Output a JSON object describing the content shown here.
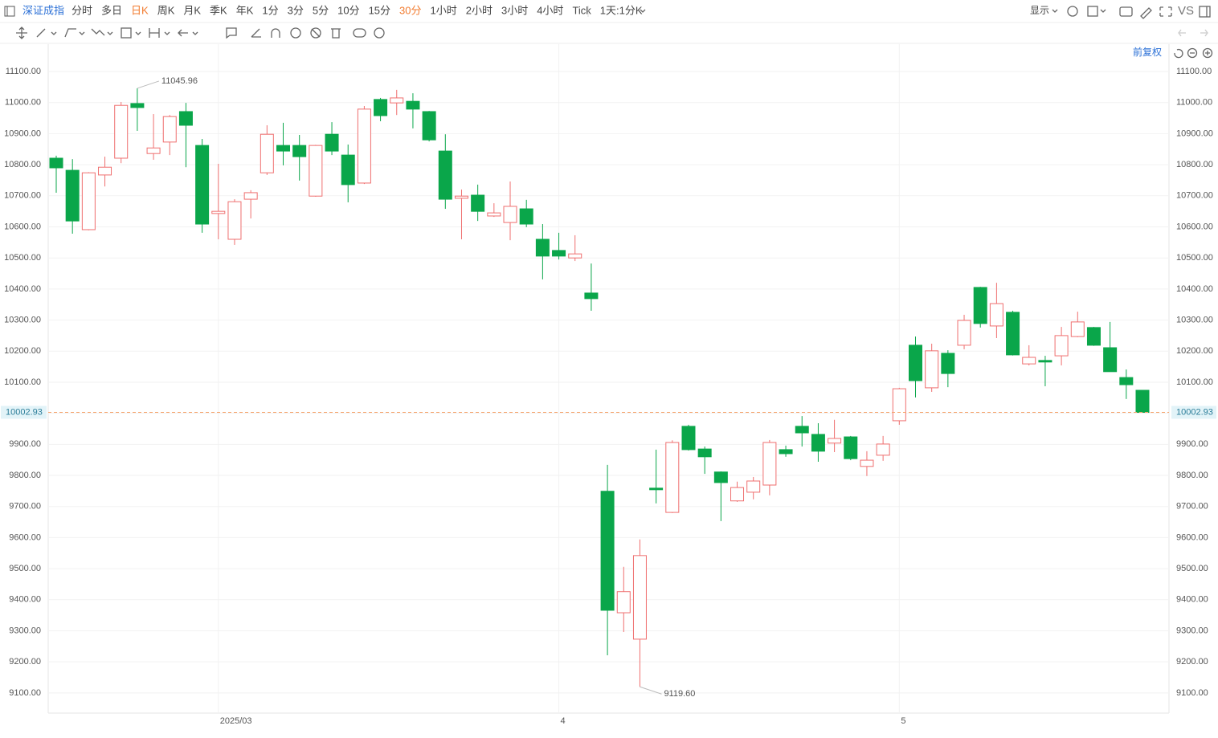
{
  "toolbar": {
    "symbol": "深证成指",
    "periods": [
      "分时",
      "多日",
      "日K",
      "周K",
      "月K",
      "季K",
      "年K",
      "1分",
      "3分",
      "5分",
      "10分",
      "15分",
      "30分",
      "1小时",
      "2小时",
      "3小时",
      "4小时",
      "Tick",
      "1天:1分K"
    ],
    "highlight": {
      "indices": [
        2,
        12
      ],
      "color": "#f27b2f"
    },
    "display": "显示",
    "vs": "VS",
    "adjust": "前复权"
  },
  "chart_data": {
    "type": "candlestick",
    "x": [
      null,
      null,
      null,
      null,
      null,
      null,
      null,
      null,
      null,
      null,
      "2025/03",
      null,
      null,
      null,
      null,
      null,
      null,
      null,
      null,
      null,
      null,
      null,
      null,
      null,
      null,
      null,
      null,
      null,
      null,
      null,
      null,
      "4",
      null,
      null,
      null,
      null,
      null,
      null,
      null,
      null,
      null,
      null,
      null,
      null,
      null,
      null,
      null,
      null,
      null,
      null,
      null,
      null,
      "5",
      null,
      null,
      null,
      null,
      null,
      null,
      null,
      null,
      null,
      null,
      null,
      null,
      null,
      null,
      null
    ],
    "open": [
      10821,
      10782,
      10591,
      10767,
      10821,
      10997,
      10836,
      10873,
      10971,
      10862,
      10643,
      10560,
      10689,
      10774,
      10862,
      10862,
      10699,
      10898,
      10831,
      10741,
      11010,
      10999,
      11004,
      10971,
      10844,
      10692,
      10702,
      10635,
      10614,
      10658,
      10560,
      10524,
      10500,
      10387,
      9749,
      9358,
      9273,
      9759,
      9681,
      9958,
      9885,
      9811,
      9718,
      9746,
      9769,
      9883,
      9958,
      9932,
      9904,
      9924,
      9829,
      9865,
      9976,
      10219,
      10082,
      10193,
      10219,
      10405,
      10281,
      10325,
      10159,
      10170,
      10185,
      10247,
      10276,
      10211,
      10115,
      10074
    ],
    "high": [
      10829,
      10818,
      10776,
      10826,
      11002,
      11045.96,
      10963,
      10960,
      10999,
      10883,
      10803,
      10689,
      10718,
      10927,
      10935,
      10896,
      10864,
      10937,
      10865,
      10989,
      11015,
      11041,
      11030,
      10973,
      10898,
      10720,
      10736,
      10676,
      10746,
      10687,
      10609,
      10581,
      10573,
      10482,
      9834,
      9506,
      9594,
      9883,
      9913,
      9963,
      9893,
      9813,
      9780,
      9795,
      9914,
      9896,
      9991,
      9968,
      9979,
      9927,
      9878,
      9927,
      10082,
      10247,
      10224,
      10203,
      10317,
      10407,
      10420,
      10330,
      10219,
      10185,
      10278,
      10327,
      10278,
      10294,
      10141,
      10074
    ],
    "low": [
      10710,
      10578,
      10589,
      10730,
      10805,
      10909,
      10816,
      10831,
      10792,
      10581,
      10560,
      10542,
      10627,
      10767,
      10798,
      10749,
      10697,
      10831,
      10679,
      10738,
      10940,
      10960,
      10917,
      10875,
      10658,
      10560,
      10619,
      10632,
      10557,
      10599,
      10431,
      10495,
      10490,
      10330,
      9221,
      9296,
      9119.6,
      9710,
      9679,
      9880,
      9805,
      9653,
      9715,
      9723,
      9736,
      9860,
      9893,
      9844,
      9875,
      9849,
      9798,
      9847,
      9963,
      10051,
      10069,
      10084,
      10206,
      10276,
      10242,
      10186,
      10154,
      10087,
      10154,
      10245,
      10217,
      10134,
      10046,
      10002
    ],
    "close": [
      10790,
      10619,
      10774,
      10792,
      10991,
      10984,
      10854,
      10955,
      10927,
      10609,
      10650,
      10681,
      10710,
      10898,
      10844,
      10826,
      10862,
      10844,
      10736,
      10979,
      10958,
      11015,
      10979,
      10880,
      10689,
      10699,
      10650,
      10645,
      10666,
      10609,
      10506,
      10506,
      10513,
      10369,
      9366,
      9426,
      9542,
      9754,
      9906,
      9883,
      9860,
      9777,
      9761,
      9782,
      9906,
      9870,
      9937,
      9878,
      9919,
      9854,
      9849,
      9901,
      10079,
      10105,
      10201,
      10128,
      10299,
      10289,
      10353,
      10188,
      10180,
      10165,
      10250,
      10294,
      10219,
      10134,
      10092,
      10002.93
    ],
    "up_color": "#ef6f6f",
    "down_color": "#0aa64a",
    "last_line_color": "#f5a36c",
    "ylim": [
      9035,
      11188
    ],
    "yticks": [
      {
        "value": 9100,
        "label": "9100.00"
      },
      {
        "value": 9200,
        "label": "9200.00"
      },
      {
        "value": 9300,
        "label": "9300.00"
      },
      {
        "value": 9400,
        "label": "9400.00"
      },
      {
        "value": 9500,
        "label": "9500.00"
      },
      {
        "value": 9600,
        "label": "9600.00"
      },
      {
        "value": 9700,
        "label": "9700.00"
      },
      {
        "value": 9800,
        "label": "9800.00"
      },
      {
        "value": 9900,
        "label": "9900.00"
      },
      {
        "value": 10000,
        "label": "10000.00"
      },
      {
        "value": 10100,
        "label": "10100.00"
      },
      {
        "value": 10200,
        "label": "10200.00"
      },
      {
        "value": 10300,
        "label": "10300.00"
      },
      {
        "value": 10400,
        "label": "10400.00"
      },
      {
        "value": 10500,
        "label": "10500.00"
      },
      {
        "value": 10600,
        "label": "10600.00"
      },
      {
        "value": 10700,
        "label": "10700.00"
      },
      {
        "value": 10800,
        "label": "10800.00"
      },
      {
        "value": 10900,
        "label": "10900.00"
      },
      {
        "value": 11000,
        "label": "11000.00"
      },
      {
        "value": 11100,
        "label": "11100.00"
      }
    ],
    "grid": true,
    "high_label": "11045.96",
    "low_label": "9119.60",
    "last_label": "10002.93"
  }
}
